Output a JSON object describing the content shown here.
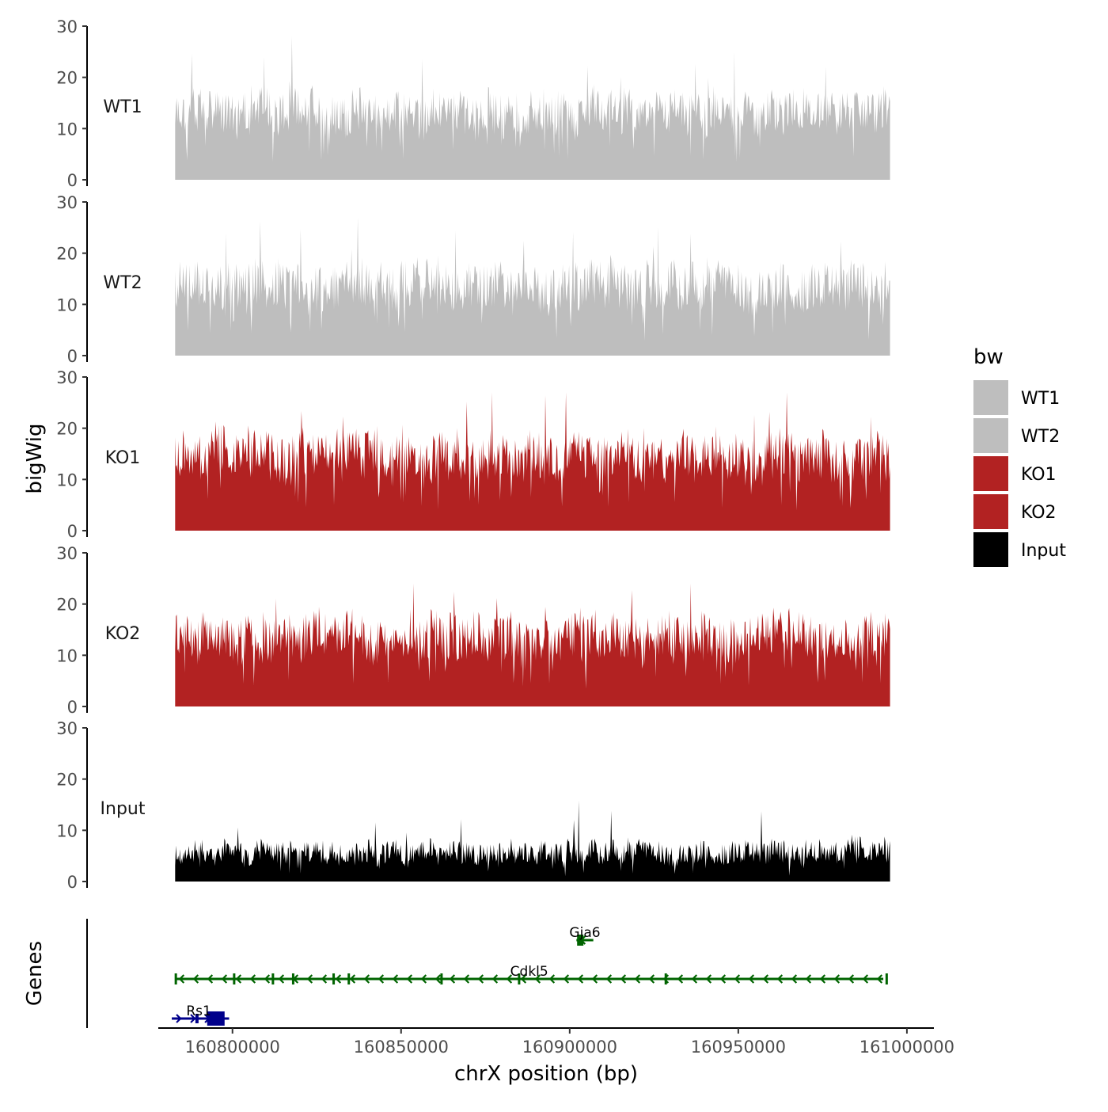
{
  "chart_data": {
    "type": "area",
    "title": "",
    "ylabel": "bigWig",
    "genes_label": "Genes",
    "xlabel": "chrX position (bp)",
    "xlim": [
      160778000,
      161008000
    ],
    "data_xrange": [
      160783000,
      160995000
    ],
    "ylim": [
      0,
      30
    ],
    "yticks": [
      "0",
      "10",
      "20",
      "30"
    ],
    "xticks": [
      {
        "value": 160800000,
        "label": "160800000"
      },
      {
        "value": 160850000,
        "label": "160850000"
      },
      {
        "value": 160900000,
        "label": "160900000"
      },
      {
        "value": 160950000,
        "label": "160950000"
      },
      {
        "value": 161000000,
        "label": "161000000"
      }
    ],
    "legend": {
      "title": "bw",
      "placement": "right",
      "entries": [
        {
          "label": "WT1",
          "color": "#bebebe"
        },
        {
          "label": "WT2",
          "color": "#bebebe"
        },
        {
          "label": "KO1",
          "color": "#b22222"
        },
        {
          "label": "KO2",
          "color": "#b22222"
        },
        {
          "label": "Input",
          "color": "#000000"
        }
      ]
    },
    "series": [
      {
        "name": "WT1",
        "color": "#bebebe",
        "base": 8,
        "spread": 9,
        "peak": 28
      },
      {
        "name": "WT2",
        "color": "#bebebe",
        "base": 8,
        "spread": 10,
        "peak": 27
      },
      {
        "name": "KO1",
        "color": "#b22222",
        "base": 9,
        "spread": 10,
        "peak": 27
      },
      {
        "name": "KO2",
        "color": "#b22222",
        "base": 8,
        "spread": 10,
        "peak": 24
      },
      {
        "name": "Input",
        "color": "#000000",
        "base": 3,
        "spread": 5,
        "peak": 17
      }
    ],
    "genes": [
      {
        "name": "Gja6",
        "color": "#006400",
        "start": 160902000,
        "end": 160907000,
        "strand": "-",
        "row": 0
      },
      {
        "name": "Cdkl5",
        "color": "#006400",
        "start": 160783000,
        "end": 160993000,
        "strand": "-",
        "row": 1
      },
      {
        "name": "Rs1",
        "color": "#00008b",
        "start": 160782000,
        "end": 160799000,
        "strand": "+",
        "row": 2
      }
    ]
  }
}
